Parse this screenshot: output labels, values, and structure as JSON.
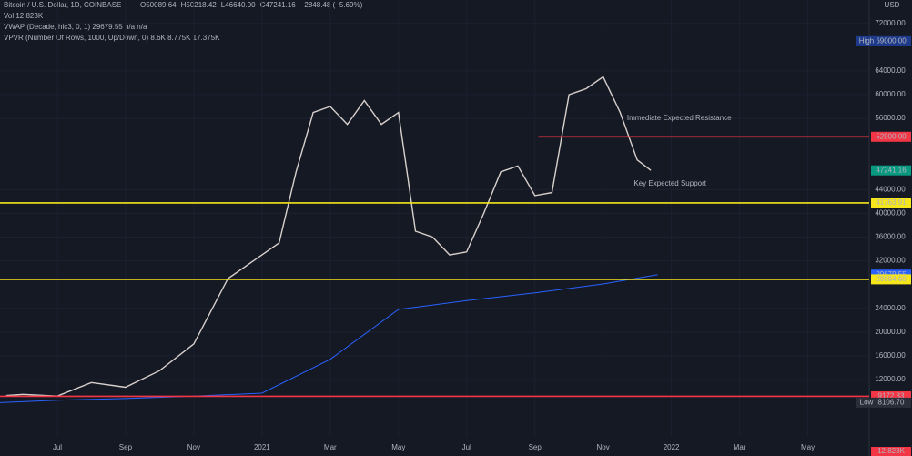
{
  "chart_data": {
    "type": "line",
    "title": "Bitcoin / U.S. Dollar, 1D, COINBASE",
    "ohlc": [
      "O50089.64",
      "H50218.42",
      "L46640.00",
      "C47241.16",
      "−2848.48 (−5.69%)"
    ],
    "indicators": [
      "Vol 12.823K",
      "VWAP (Decade, hlc3, 0, 1) 29679.55 n/a n/a",
      "VPVR (Number Of Rows, 1000, Up/Down, 0) 8.6K 8.775K 17.375K"
    ],
    "currency": "USD",
    "xlim": [
      -1.68,
      23.8
    ],
    "xticks": [
      {
        "value": 0,
        "label": "Jul"
      },
      {
        "value": 2,
        "label": "Sep"
      },
      {
        "value": 4,
        "label": "Nov"
      },
      {
        "value": 6,
        "label": "2021"
      },
      {
        "value": 8,
        "label": "Mar"
      },
      {
        "value": 10,
        "label": "May"
      },
      {
        "value": 12,
        "label": "Jul"
      },
      {
        "value": 14,
        "label": "Sep"
      },
      {
        "value": 16,
        "label": "Nov"
      },
      {
        "value": 18,
        "label": "2022"
      },
      {
        "value": 20,
        "label": "Mar"
      },
      {
        "value": 22,
        "label": "May"
      }
    ],
    "ylim": [
      2337,
      75950
    ],
    "yticks": [
      {
        "value": 12000,
        "label": "12000.00"
      },
      {
        "value": 16000,
        "label": "16000.00"
      },
      {
        "value": 20000,
        "label": "20000.00"
      },
      {
        "value": 24000,
        "label": "24000.00"
      },
      {
        "value": 32000,
        "label": "32000.00"
      },
      {
        "value": 36000,
        "label": "36000.00"
      },
      {
        "value": 40000,
        "label": "40000.00"
      },
      {
        "value": 44000,
        "label": "44000.00"
      },
      {
        "value": 56000,
        "label": "56000.00"
      },
      {
        "value": 60000,
        "label": "60000.00"
      },
      {
        "value": 64000,
        "label": "64000.00"
      },
      {
        "value": 72000,
        "label": "72000.00"
      }
    ],
    "series": [
      {
        "name": "BTCUSD",
        "color": "#d8d0cc",
        "x": [
          -1.5,
          -1,
          0,
          1,
          2,
          3,
          4,
          5,
          6,
          6.5,
          7,
          7.5,
          8,
          8.5,
          9,
          9.5,
          10,
          10.5,
          11,
          11.5,
          12,
          12.5,
          13,
          13.5,
          14,
          14.5,
          15,
          15.5,
          16,
          16.5,
          17,
          17.4
        ],
        "values": [
          9300,
          9500,
          9200,
          11500,
          10700,
          13500,
          18000,
          29000,
          33000,
          35000,
          47000,
          57000,
          58000,
          55000,
          59000,
          55000,
          57000,
          37000,
          36000,
          33000,
          33500,
          40000,
          47000,
          48000,
          43000,
          43500,
          60000,
          61000,
          63000,
          57000,
          49000,
          47241.16
        ]
      },
      {
        "name": "VWAP",
        "color": "#2962ff",
        "x": [
          -1.68,
          0,
          2,
          4,
          6,
          8,
          10,
          12,
          14,
          16,
          17.6
        ],
        "values": [
          8106.7,
          8500,
          8800,
          9200,
          9700,
          15400,
          23800,
          25300,
          26600,
          28100,
          29679.55
        ]
      }
    ],
    "levels": [
      {
        "value": 69000,
        "label": "69000.00",
        "tag": "High",
        "color": "#1e3a8a",
        "line": false
      },
      {
        "value": 52900,
        "label": "52900.00",
        "color": "#f23645",
        "line": true,
        "x_start": 14.1
      },
      {
        "value": 47241.16,
        "label": "47241.16",
        "color": "#089981",
        "line": false
      },
      {
        "value": 41763.91,
        "label": "41763.91",
        "color": "#f5e51b",
        "line": true
      },
      {
        "value": 29679.55,
        "label": "29679.55",
        "color": "#2962ff",
        "line": false
      },
      {
        "value": 28884.6,
        "label": "28884.60",
        "color": "#f5e51b",
        "line": true
      },
      {
        "value": 9172.33,
        "label": "9172.33",
        "color": "#f23645",
        "line": true
      },
      {
        "value": 8106.7,
        "label": "8106.70",
        "tag": "Low",
        "color": "#2a2e39",
        "line": false
      }
    ],
    "volume_tag": "12.823K",
    "annotations": [
      {
        "text": "Immediate Expected Resistance",
        "color": "#f23645",
        "x": 16.7,
        "y": 56000
      },
      {
        "text": "Key Expected Support",
        "color": "#f5e51b",
        "x": 16.9,
        "y": 45000
      }
    ]
  }
}
